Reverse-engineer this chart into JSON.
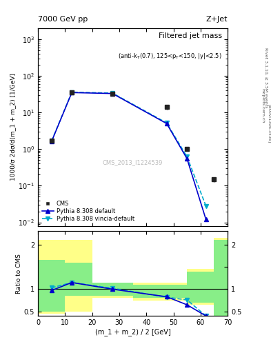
{
  "title_top": "7000 GeV pp",
  "title_right": "Z+Jet",
  "plot_title": "Filtered jet mass",
  "plot_subtitle": "(anti-k_{T}(0.7), 125<p_{T}<150, |y|<2.5)",
  "watermark": "CMS_2013_I1224539",
  "ylabel_main": "1000/σ 2dσ/d(m_1 + m_2) [1/GeV]",
  "ylabel_ratio": "Ratio to CMS",
  "xlabel": "(m_1 + m_2) / 2 [GeV]",
  "right_label": "Rivet 3.1.10, ≥ 3.5M events",
  "arxiv_label": "[arXiv:1306.3436]",
  "mcplots_label": "mcplots.cern.ch",
  "cms_x": [
    5,
    12.5,
    27.5,
    47.5,
    55,
    65
  ],
  "cms_y": [
    1.7,
    35,
    32,
    14,
    1.0,
    0.15
  ],
  "cms_yerr_low": [
    0.25,
    4,
    4,
    2,
    0.12,
    0.025
  ],
  "cms_yerr_high": [
    0.25,
    4,
    4,
    2,
    0.12,
    0.025
  ],
  "pythia_x": [
    5,
    12.5,
    27.5,
    47.5,
    55,
    62
  ],
  "pythia_y": [
    1.6,
    35,
    33,
    5.0,
    0.55,
    0.012
  ],
  "pythia_color": "#0000cc",
  "vincia_x": [
    5,
    12.5,
    27.5,
    47.5,
    55,
    62
  ],
  "vincia_y": [
    1.65,
    36,
    34,
    5.2,
    0.62,
    0.028
  ],
  "vincia_color": "#00aacc",
  "ratio_pythia_x": [
    5,
    12.5,
    27.5,
    47.5,
    55,
    62
  ],
  "ratio_pythia_y": [
    0.97,
    1.15,
    1.0,
    0.83,
    0.65,
    0.4
  ],
  "ratio_vincia_x": [
    5,
    12.5,
    27.5,
    47.5,
    55,
    62
  ],
  "ratio_vincia_y": [
    1.03,
    1.15,
    1.02,
    0.82,
    0.76,
    0.4
  ],
  "band_x": [
    0,
    10,
    10,
    20,
    20,
    35,
    35,
    55,
    55,
    65,
    65,
    70
  ],
  "green_band_low": [
    0.5,
    0.5,
    0.85,
    0.85,
    0.85,
    0.85,
    0.8,
    0.8,
    0.7,
    0.7,
    0.4,
    0.4
  ],
  "green_band_high": [
    1.65,
    1.65,
    1.6,
    1.6,
    1.15,
    1.15,
    1.1,
    1.1,
    1.4,
    1.4,
    2.1,
    2.1
  ],
  "yellow_band_low": [
    0.45,
    0.45,
    0.5,
    0.5,
    0.8,
    0.8,
    0.75,
    0.75,
    0.65,
    0.65,
    0.35,
    0.35
  ],
  "yellow_band_high": [
    2.1,
    2.1,
    2.1,
    2.1,
    1.15,
    1.15,
    1.15,
    1.15,
    1.45,
    1.45,
    2.15,
    2.15
  ],
  "xlim": [
    0,
    70
  ],
  "ylim_main": [
    0.008,
    2000
  ],
  "ylim_ratio": [
    0.4,
    2.3
  ],
  "background_color": "#ffffff",
  "cms_marker_color": "#222222"
}
